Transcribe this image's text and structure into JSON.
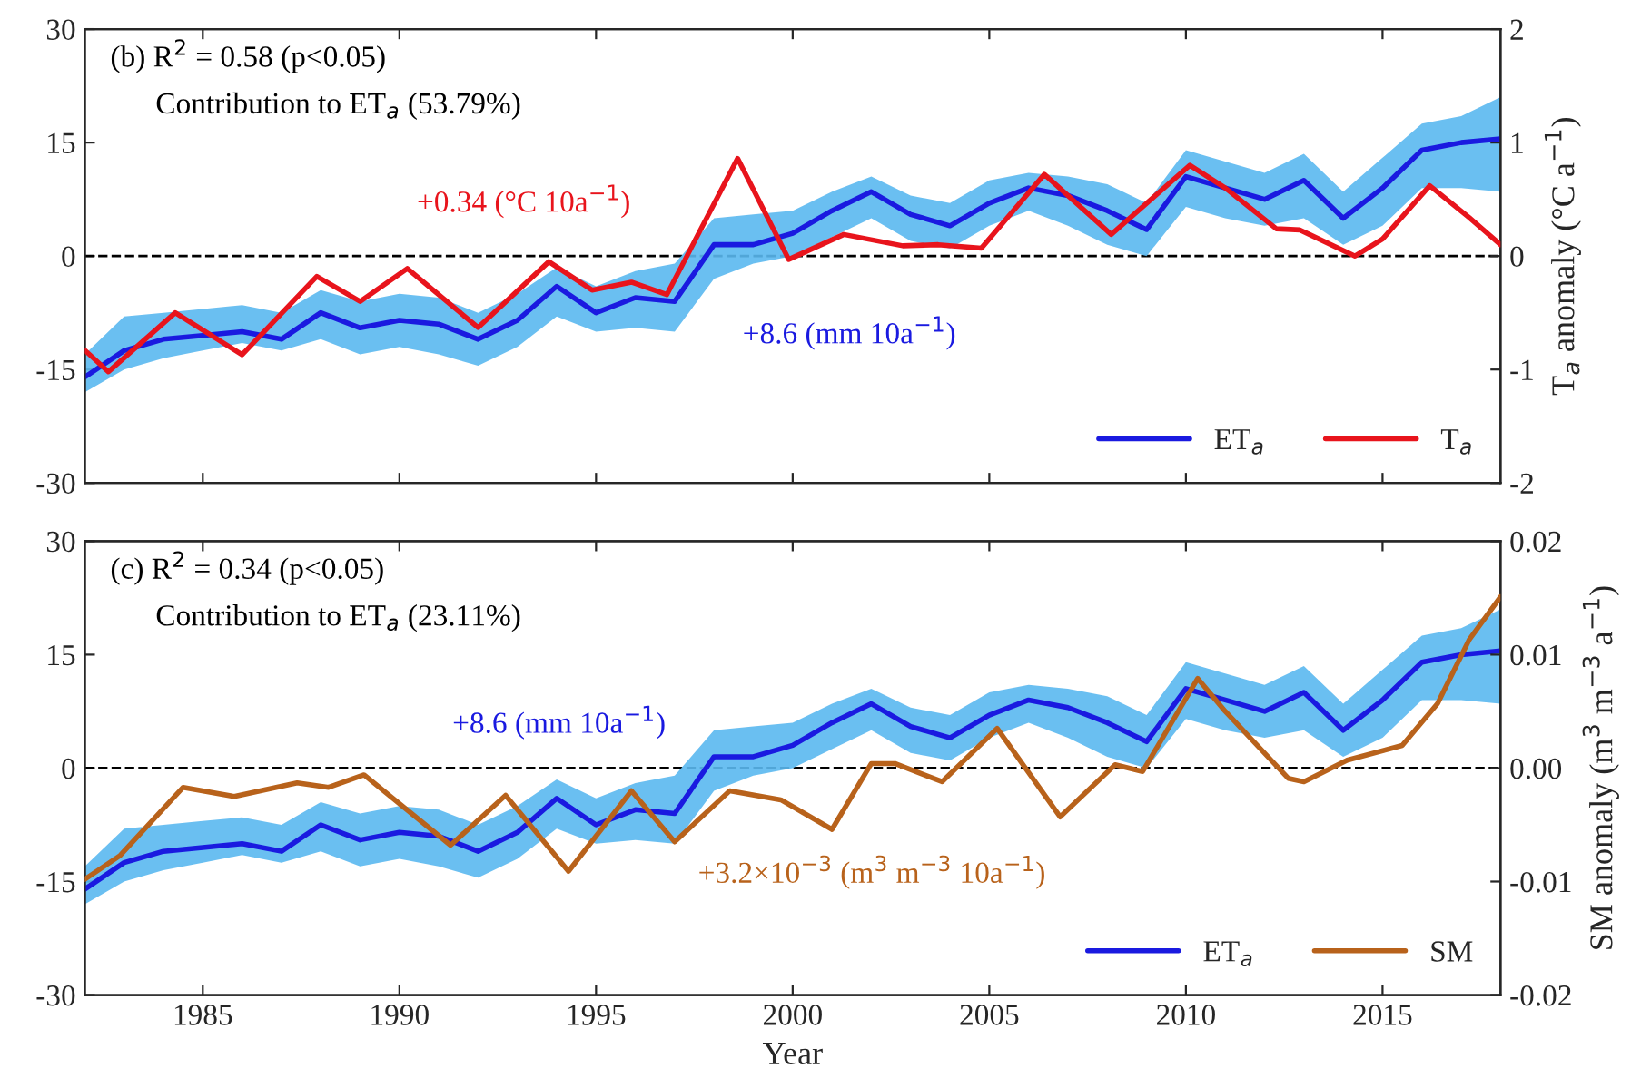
{
  "chart_data": [
    {
      "type": "line",
      "xlim": [
        1982,
        2018
      ],
      "xticks": [
        1985,
        1990,
        1995,
        2000,
        2005,
        2010,
        2015
      ],
      "ylim": [
        -30,
        30
      ],
      "yticks": [
        -30,
        -15,
        0,
        15,
        30
      ],
      "y2lim": [
        -2,
        2
      ],
      "y2ticks": [
        -2,
        -1,
        0,
        1,
        2
      ],
      "y2label": "T$_{a}$ anomaly (°C a$^{−1}$)",
      "tick_labels": "y",
      "legend": "bottom right",
      "grid": false,
      "ref_lines": [
        {
          "axis": "y",
          "value": 0,
          "color": "#000000",
          "line_style": "dashed"
        }
      ],
      "annotations": [
        "(b) R$^{2}$ = 0.58 (p<0.05)",
        "Contribution to ET$_{a}$ (53.79%)",
        "+8.6 (mm 10a$^{−1}$)",
        "+0.34 (°C 10a$^{−1}$)"
      ],
      "series": [
        {
          "name": "ET$_{a}$",
          "color": "#1a1ae0",
          "axis": "y",
          "x": [
            1982,
            1983,
            1984,
            1985,
            1986,
            1987,
            1988,
            1989,
            1990,
            1991,
            1992,
            1993,
            1994,
            1995,
            1996,
            1997,
            1998,
            1999,
            2000,
            2001,
            2002,
            2003,
            2004,
            2005,
            2006,
            2007,
            2008,
            2009,
            2010,
            2011,
            2012,
            2013,
            2014,
            2015,
            2016,
            2017,
            2018
          ],
          "values": [
            -16,
            -12.5,
            -11,
            -10.5,
            -10,
            -11,
            -7.5,
            -9.5,
            -8.5,
            -9,
            -11,
            -8.5,
            -4,
            -7.5,
            -5.5,
            -6,
            1.5,
            1.5,
            3,
            6,
            8.5,
            5.5,
            4,
            7,
            9,
            8,
            6,
            3.5,
            10.5,
            9,
            7.5,
            10,
            5,
            9,
            14,
            15,
            15.5
          ],
          "lower": [
            -18,
            -15,
            -13.5,
            -12.5,
            -11.5,
            -12.5,
            -11,
            -13,
            -12,
            -13,
            -14.5,
            -12,
            -8,
            -10,
            -9.5,
            -10,
            -3,
            -1,
            0,
            2.5,
            5,
            2,
            1,
            4,
            6,
            4,
            1.5,
            0,
            6.5,
            5,
            4,
            5,
            1.5,
            4,
            9,
            9,
            8.5
          ],
          "upper": [
            -13,
            -8,
            -7.5,
            -7,
            -6.5,
            -7.5,
            -4.5,
            -6,
            -5,
            -5.5,
            -7.5,
            -5,
            -1.5,
            -4,
            -2,
            -1,
            5,
            5.5,
            6,
            8.5,
            10.5,
            8,
            7,
            10,
            11,
            10.5,
            9.5,
            7,
            14,
            12.5,
            11,
            13.5,
            8.5,
            13,
            17.5,
            18.5,
            21
          ]
        },
        {
          "name": "T$_{a}$",
          "color": "#e8141c",
          "axis": "y2",
          "x": [
            1982,
            1982.6,
            1984.3,
            1986,
            1987.9,
            1989,
            1990.2,
            1992,
            1993.8,
            1994.9,
            1995.9,
            1996.8,
            1998.6,
            1999.9,
            2001.3,
            2002.8,
            2003.7,
            2004.8,
            2006.4,
            2008.1,
            2010.1,
            2011,
            2012.3,
            2012.9,
            2014.3,
            2015,
            2016.2,
            2017.2,
            2018
          ],
          "values": [
            -0.83,
            -1.02,
            -0.5,
            -0.87,
            -0.18,
            -0.4,
            -0.11,
            -0.63,
            -0.05,
            -0.3,
            -0.23,
            -0.34,
            0.86,
            -0.03,
            0.19,
            0.09,
            0.1,
            0.07,
            0.72,
            0.19,
            0.8,
            0.6,
            0.24,
            0.23,
            0.0,
            0.15,
            0.62,
            0.34,
            0.1
          ]
        }
      ]
    },
    {
      "type": "line",
      "xlim": [
        1982,
        2018
      ],
      "xticks": [
        1985,
        1990,
        1995,
        2000,
        2005,
        2010,
        2015
      ],
      "ylim": [
        -30,
        30
      ],
      "yticks": [
        -30,
        -15,
        0,
        15,
        30
      ],
      "y2lim": [
        -0.02,
        0.02
      ],
      "y2ticks": [
        {
          "value": -0.02,
          "label": "-0.02"
        },
        {
          "value": -0.01,
          "label": "-0.01"
        },
        {
          "value": 0,
          "label": "0.00"
        },
        {
          "value": 0.01,
          "label": "0.01"
        },
        {
          "value": 0.02,
          "label": "0.02"
        }
      ],
      "xlabel": "Year",
      "y2label": "SM anomaly (m$^{3}$ m$^{−3}$ a$^{−1}$)",
      "legend": "bottom right",
      "grid": false,
      "ref_lines": [
        {
          "axis": "y",
          "value": 0,
          "color": "#000000",
          "line_style": "dashed"
        }
      ],
      "annotations": [
        "(c) R$^{2}$ = 0.34 (p<0.05)",
        "Contribution to ET$_{a}$ (23.11%)",
        "+8.6 (mm 10a$^{−1}$)",
        "+3.2×10$^{−3}$ (m$^{3}$ m$^{−3}$ 10a$^{−1}$)"
      ],
      "series": [
        {
          "name": "ET$_{a}$",
          "color": "#1a1ae0",
          "axis": "y",
          "x": [
            1982,
            1983,
            1984,
            1985,
            1986,
            1987,
            1988,
            1989,
            1990,
            1991,
            1992,
            1993,
            1994,
            1995,
            1996,
            1997,
            1998,
            1999,
            2000,
            2001,
            2002,
            2003,
            2004,
            2005,
            2006,
            2007,
            2008,
            2009,
            2010,
            2011,
            2012,
            2013,
            2014,
            2015,
            2016,
            2017,
            2018
          ],
          "values": [
            -16,
            -12.5,
            -11,
            -10.5,
            -10,
            -11,
            -7.5,
            -9.5,
            -8.5,
            -9,
            -11,
            -8.5,
            -4,
            -7.5,
            -5.5,
            -6,
            1.5,
            1.5,
            3,
            6,
            8.5,
            5.5,
            4,
            7,
            9,
            8,
            6,
            3.5,
            10.5,
            9,
            7.5,
            10,
            5,
            9,
            14,
            15,
            15.5
          ],
          "lower": [
            -18,
            -15,
            -13.5,
            -12.5,
            -11.5,
            -12.5,
            -11,
            -13,
            -12,
            -13,
            -14.5,
            -12,
            -8,
            -10,
            -9.5,
            -10,
            -3,
            -1,
            0,
            2.5,
            5,
            2,
            1,
            4,
            6,
            4,
            1.5,
            0,
            6.5,
            5,
            4,
            5,
            1.5,
            4,
            9,
            9,
            8.5
          ],
          "upper": [
            -13,
            -8,
            -7.5,
            -7,
            -6.5,
            -7.5,
            -4.5,
            -6,
            -5,
            -5.5,
            -7.5,
            -5,
            -1.5,
            -4,
            -2,
            -1,
            5,
            5.5,
            6,
            8.5,
            10.5,
            8,
            7,
            10,
            11,
            10.5,
            9.5,
            7,
            14,
            12.5,
            11,
            13.5,
            8.5,
            13,
            17.5,
            18.5,
            21
          ]
        },
        {
          "name": "SM",
          "color": "#b8621b",
          "axis": "y2",
          "x": [
            1982,
            1982.9,
            1984.5,
            1985.8,
            1987.4,
            1988.2,
            1989.1,
            1991.3,
            1992.7,
            1994.3,
            1995.9,
            1997,
            1998.4,
            1999.7,
            2001,
            2002,
            2002.6,
            2003.8,
            2005.2,
            2006.8,
            2008.2,
            2008.9,
            2010.3,
            2011,
            2012.6,
            2013,
            2014.1,
            2015.5,
            2016.4,
            2017.2,
            2018
          ],
          "values": [
            -0.0098,
            -0.0077,
            -0.0017,
            -0.0025,
            -0.0013,
            -0.0017,
            -0.0006,
            -0.0068,
            -0.0024,
            -0.0091,
            -0.002,
            -0.0065,
            -0.002,
            -0.0028,
            -0.0054,
            0.0004,
            0.0004,
            -0.0012,
            0.0035,
            -0.0043,
            0.0003,
            -0.0003,
            0.0079,
            0.005,
            -0.0009,
            -0.0012,
            0.0007,
            0.002,
            0.0057,
            0.0113,
            0.0151
          ]
        }
      ]
    }
  ]
}
